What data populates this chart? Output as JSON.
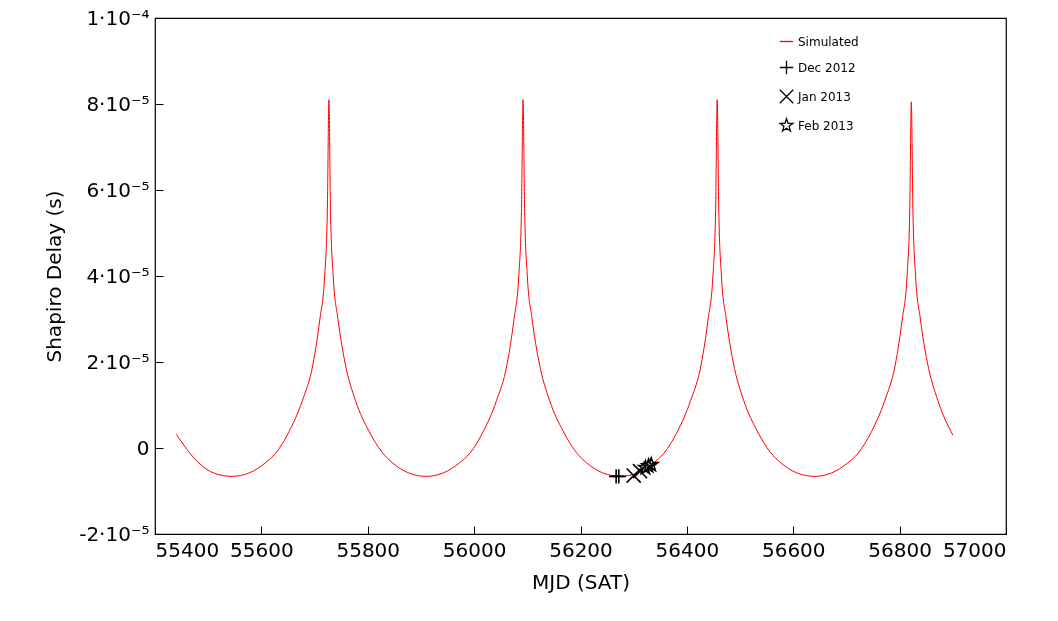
{
  "chart_data": {
    "type": "line",
    "xlabel": "MJD (SAT)",
    "ylabel": "Shapiro Delay (s)",
    "xlim": [
      55400,
      57000
    ],
    "xticks": [
      55400,
      55600,
      55800,
      56000,
      56200,
      56400,
      56600,
      56800,
      57000
    ],
    "ylim": [
      -2e-05,
      0.0001
    ],
    "yticks": [
      {
        "value": -2e-05,
        "label": "-2·10⁻⁵"
      },
      {
        "value": 0,
        "label": "0"
      },
      {
        "value": 2e-05,
        "label": "2·10⁻⁵"
      },
      {
        "value": 4e-05,
        "label": "4·10⁻⁵"
      },
      {
        "value": 6e-05,
        "label": "6·10⁻⁵"
      },
      {
        "value": 8e-05,
        "label": "8·10⁻⁵"
      },
      {
        "value": 0.0001,
        "label": "1·10⁻⁴"
      }
    ],
    "grid": false,
    "legend": "top right",
    "series": [
      {
        "name": "Simulated",
        "color": "#ff0000",
        "line_style": "solid",
        "marker": "none",
        "x": [
          55440,
          55480,
          55512,
          55545,
          55577,
          55607,
          55627,
          55652,
          55677,
          55697,
          55710,
          55719,
          55724,
          55727,
          55730,
          55735,
          55744,
          55757,
          55777,
          55802,
          55827,
          55847,
          55877,
          55910,
          55942,
          55972,
          55992,
          56017,
          56042,
          56062,
          56075,
          56084,
          56089,
          56092,
          56095,
          56100,
          56109,
          56122,
          56142,
          56167,
          56192,
          56212,
          56242,
          56275,
          56307,
          56337,
          56357,
          56382,
          56407,
          56427,
          56440,
          56449,
          56454,
          56457,
          56460,
          56465,
          56474,
          56487,
          56507,
          56532,
          56557,
          56577,
          56607,
          56640,
          56672,
          56702,
          56722,
          56747,
          56772,
          56792,
          56805,
          56814,
          56819,
          56822,
          56825,
          56830,
          56839,
          56852,
          56872,
          56900
        ],
        "values": [
          3.2e-06,
          -3.2e-06,
          -5.9e-06,
          -6.6e-06,
          -5.8e-06,
          -3.5e-06,
          -1.2e-06,
          3.8e-06,
          1.1e-05,
          1.95e-05,
          3e-05,
          4e-05,
          5.5e-05,
          8.1e-05,
          5.5e-05,
          4e-05,
          3e-05,
          2e-05,
          1.1e-05,
          4e-06,
          -1e-06,
          -3.5e-06,
          -5.8e-06,
          -6.6e-06,
          -5.8e-06,
          -3.5e-06,
          -1.2e-06,
          3.8e-06,
          1.1e-05,
          1.95e-05,
          3e-05,
          4e-05,
          5.5e-05,
          8.1e-05,
          5.5e-05,
          4e-05,
          3e-05,
          2e-05,
          1.1e-05,
          4e-06,
          -1e-06,
          -3.5e-06,
          -5.8e-06,
          -6.6e-06,
          -5.8e-06,
          -3.5e-06,
          -1.2e-06,
          3.8e-06,
          1.1e-05,
          1.95e-05,
          3e-05,
          4e-05,
          5.5e-05,
          8.1e-05,
          5.5e-05,
          4e-05,
          3e-05,
          2e-05,
          1.1e-05,
          4e-06,
          -1e-06,
          -3.5e-06,
          -5.8e-06,
          -6.6e-06,
          -5.8e-06,
          -3.5e-06,
          -1.2e-06,
          3.8e-06,
          1.1e-05,
          1.95e-05,
          3e-05,
          4e-05,
          5.5e-05,
          8.05e-05,
          5.5e-05,
          4e-05,
          3e-05,
          2e-05,
          1.1e-05,
          3e-06
        ]
      },
      {
        "name": "Dec 2012",
        "type": "scatter",
        "color": "#000000",
        "marker": "cross",
        "x": [
          56267,
          56272
        ],
        "values": [
          -6.6e-06,
          -6.6e-06
        ]
      },
      {
        "name": "Jan 2013",
        "type": "scatter",
        "color": "#000000",
        "x": [
          56300,
          56312
        ],
        "values": [
          -6.4e-06,
          -5.4e-06
        ]
      },
      {
        "name": "Feb 2013",
        "type": "scatter",
        "color": "#000000",
        "marker": "star",
        "x": [
          56322,
          56328,
          56333
        ],
        "values": [
          -4.6e-06,
          -4.2e-06,
          -3.9e-06
        ]
      }
    ]
  }
}
